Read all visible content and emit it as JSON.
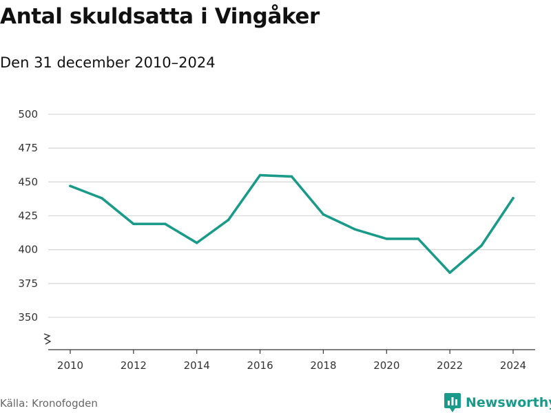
{
  "chart_title": "Antal skuldsatta i Vingåker",
  "chart_subtitle": "Den 31 december 2010–2024",
  "source_label": "Källa: Kronofogden",
  "brand": {
    "name": "Newsworthy",
    "icon": "newsworthy-logo-icon",
    "color": "#1a9a88"
  },
  "colors": {
    "line": "#1a9a88",
    "grid": "#d9d9d9",
    "axis": "#333333"
  },
  "chart_data": {
    "type": "line",
    "title": "Antal skuldsatta i Vingåker",
    "subtitle": "Den 31 december 2010–2024",
    "xlabel": "",
    "ylabel": "",
    "x": [
      2010,
      2011,
      2012,
      2013,
      2014,
      2015,
      2016,
      2017,
      2018,
      2019,
      2020,
      2021,
      2022,
      2023,
      2024
    ],
    "series": [
      {
        "values": [
          447,
          438,
          419,
          419,
          405,
          422,
          455,
          454,
          426,
          415,
          408,
          408,
          383,
          403,
          438
        ]
      }
    ],
    "xticks": [
      2010,
      2012,
      2014,
      2016,
      2018,
      2020,
      2022,
      2024
    ],
    "yticks": [
      350,
      375,
      400,
      425,
      450,
      475,
      500
    ],
    "xlim": [
      2010,
      2024
    ],
    "ylim": [
      350,
      500
    ],
    "y_axis_break": true,
    "grid": "horizontal",
    "legend": "none"
  }
}
